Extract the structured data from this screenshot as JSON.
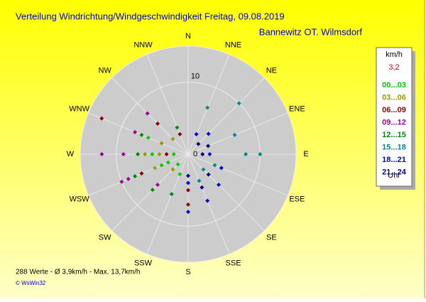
{
  "chart_data": {
    "type": "polar-scatter",
    "title": "Verteilung Windrichtung/Windgeschwindigkeit  Freitag, 09.08.2019",
    "subtitle": "Bannewitz OT. Wilmsdorf",
    "directions": [
      "N",
      "NNE",
      "NE",
      "ENE",
      "E",
      "ESE",
      "SE",
      "SSE",
      "S",
      "SSW",
      "SW",
      "WSW",
      "W",
      "WNW",
      "NW",
      "NNW"
    ],
    "rlim": [
      0,
      15
    ],
    "rticks": [
      0,
      10
    ],
    "legend_title": "km/h",
    "legend_note": "3,2",
    "legend_footer": "Uhr",
    "series": [
      {
        "name": "00...03",
        "color": "#00cc00",
        "x": [
          270,
          247.5,
          225,
          292.5,
          202.5,
          270,
          247.5
        ],
        "values": [
          5,
          3,
          2,
          6,
          3,
          2,
          4
        ]
      },
      {
        "name": "03...06",
        "color": "#999900",
        "x": [
          270,
          292.5,
          247.5,
          225,
          270,
          315
        ],
        "values": [
          6,
          4,
          5,
          3,
          4,
          3
        ]
      },
      {
        "name": "06...09",
        "color": "#880000",
        "x": [
          292.5,
          315,
          270,
          337.5,
          247.5,
          180,
          180
        ],
        "values": [
          13,
          6,
          3,
          3,
          7,
          5,
          7
        ]
      },
      {
        "name": "09...12",
        "color": "#990099",
        "x": [
          270,
          247.5,
          247.5,
          292.5,
          225,
          270,
          315
        ],
        "values": [
          12,
          9,
          10,
          8,
          6,
          9,
          8
        ]
      },
      {
        "name": "12...15",
        "color": "#008800",
        "x": [
          292.5,
          247.5,
          225,
          202.5,
          270,
          337.5
        ],
        "values": [
          7,
          8,
          7,
          6,
          7,
          4
        ]
      },
      {
        "name": "15...18",
        "color": "#008888",
        "x": [
          45,
          22.5,
          90,
          90,
          67.5,
          112.5,
          135,
          157.5
        ],
        "values": [
          10,
          7,
          8,
          10,
          7,
          4,
          3,
          4
        ]
      },
      {
        "name": "18...21",
        "color": "#0000dd",
        "x": [
          90,
          112.5,
          135,
          157.5,
          180,
          180,
          22.5,
          45
        ],
        "values": [
          3,
          5,
          6,
          7,
          4,
          8,
          3,
          4
        ]
      },
      {
        "name": "21...24",
        "color": "#000088",
        "x": [
          90,
          157.5,
          180,
          45,
          67.5,
          135
        ],
        "values": [
          2,
          5,
          3,
          2,
          3,
          4
        ]
      }
    ],
    "footer": "288 Werte  -  Ø 3,9km/h  -  Max. 13,7km/h",
    "credit": "© WsWin32"
  }
}
